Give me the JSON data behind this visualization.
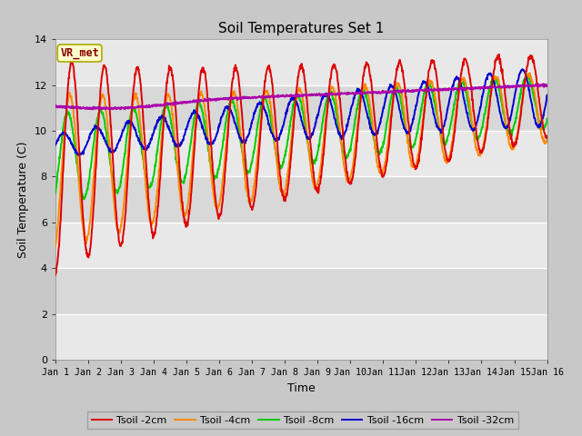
{
  "title": "Soil Temperatures Set 1",
  "xlabel": "Time",
  "ylabel": "Soil Temperature (C)",
  "xlim": [
    0,
    15
  ],
  "ylim": [
    0,
    14
  ],
  "yticks": [
    0,
    2,
    4,
    6,
    8,
    10,
    12,
    14
  ],
  "xtick_labels": [
    "Jan 1",
    "Jan 2",
    "Jan 3",
    "Jan 4",
    "Jan 5",
    "Jan 6",
    "Jan 7",
    "Jan 8",
    "Jan 9",
    "Jan 10",
    "Jan 11",
    "Jan 12",
    "Jan 13",
    "Jan 14",
    "Jan 15",
    "Jan 16"
  ],
  "colors": {
    "Tsoil -2cm": "#dd0000",
    "Tsoil -4cm": "#ff8800",
    "Tsoil -8cm": "#00cc00",
    "Tsoil -16cm": "#0000cc",
    "Tsoil -32cm": "#aa00aa"
  },
  "legend_label": "VR_met",
  "outer_bg": "#c8c8c8",
  "plot_bg_light": "#e8e8e8",
  "plot_bg_dark": "#d8d8d8",
  "grid_line_color": "#ffffff",
  "annotation_box_color": "#ffffcc",
  "annotation_text_color": "#880000",
  "annotation_edge_color": "#aaaa00"
}
